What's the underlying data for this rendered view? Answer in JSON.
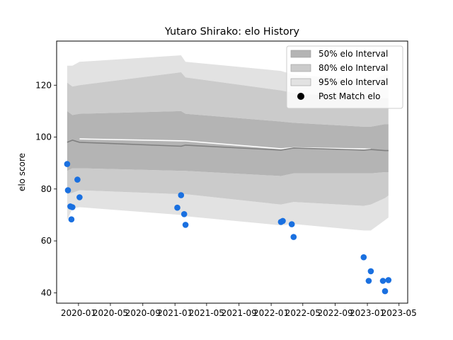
{
  "chart_data": {
    "type": "scatter",
    "title": "Yutaro Shirako: elo History",
    "xlabel": "",
    "ylabel": "elo score",
    "xlim": [
      "2019-10-10",
      "2023-06-03"
    ],
    "ylim": [
      36,
      137
    ],
    "x_ticks": [
      "2020-01",
      "2020-05",
      "2020-09",
      "2021-01",
      "2021-05",
      "2021-09",
      "2022-01",
      "2022-05",
      "2022-09",
      "2023-01",
      "2023-05"
    ],
    "y_ticks": [
      40,
      60,
      80,
      100,
      120
    ],
    "grid": false,
    "legend_position": "top-right",
    "colors": {
      "band_50": "#b4b4b4",
      "band_80": "#cbcbcb",
      "band_95": "#e2e2e2",
      "points": "#1a70e0",
      "mean_line": "#808080",
      "pre_line": "#ffffff"
    },
    "legend": [
      {
        "label": "50% elo Interval",
        "kind": "band",
        "color": "#b4b4b4"
      },
      {
        "label": "80% elo Interval",
        "kind": "band",
        "color": "#cbcbcb"
      },
      {
        "label": "95% elo Interval",
        "kind": "band",
        "color": "#e2e2e2"
      },
      {
        "label": "Post Match elo",
        "kind": "marker",
        "color": "#000000"
      }
    ],
    "bands": {
      "x": [
        "2019-11-19",
        "2019-12-09",
        "2020-01-05",
        "2021-01-24",
        "2021-02-10",
        "2022-02-07",
        "2022-03-27",
        "2022-12-18",
        "2023-01-14",
        "2023-03-09",
        "2023-03-22"
      ],
      "mean": [
        98.0,
        98.8,
        98.0,
        96.5,
        96.9,
        95.0,
        95.8,
        95.0,
        95.2,
        94.8,
        94.8
      ],
      "p50_low": [
        87,
        88,
        88,
        87,
        87,
        85,
        86,
        86,
        86,
        86.5,
        86.5
      ],
      "p50_high": [
        110,
        108.5,
        109,
        110,
        109,
        106,
        105.5,
        104,
        104,
        105,
        105
      ],
      "p80_low": [
        78,
        78.5,
        79.5,
        78,
        78,
        74,
        75,
        73.5,
        74,
        76.5,
        77.5
      ],
      "p80_high": [
        121,
        119.5,
        120,
        125,
        123,
        118,
        117,
        115,
        115,
        115,
        115
      ],
      "p95_low": [
        68,
        72.5,
        73,
        70,
        69.5,
        66,
        66.5,
        64,
        64,
        68,
        69
      ],
      "p95_high": [
        127.5,
        127.5,
        129,
        131.5,
        129,
        125.5,
        124,
        122,
        122,
        124,
        124
      ]
    },
    "pre_match_line": {
      "x": [
        "2020-01-05",
        "2021-02-10",
        "2022-02-07",
        "2022-03-27",
        "2023-01-14"
      ],
      "y": [
        99.3,
        98.5,
        95.5,
        95.9,
        95.4
      ]
    },
    "series": [
      {
        "x": [
          "2019-11-19",
          "2019-11-22",
          "2019-12-01",
          "2019-12-05",
          "2019-12-09",
          "2019-12-28",
          "2020-01-05",
          "2021-01-10",
          "2021-01-24",
          "2021-02-05",
          "2021-02-10",
          "2022-02-07",
          "2022-02-14",
          "2022-03-20",
          "2022-03-27",
          "2022-12-18",
          "2023-01-06",
          "2023-01-14",
          "2023-03-01",
          "2023-03-09",
          "2023-03-22"
        ],
        "y": [
          89.6,
          79.5,
          73.3,
          68.3,
          73.0,
          83.6,
          76.8,
          72.8,
          77.6,
          70.3,
          66.2,
          67.3,
          67.7,
          66.4,
          61.5,
          53.7,
          44.6,
          48.3,
          44.6,
          40.6,
          44.9
        ]
      }
    ]
  }
}
